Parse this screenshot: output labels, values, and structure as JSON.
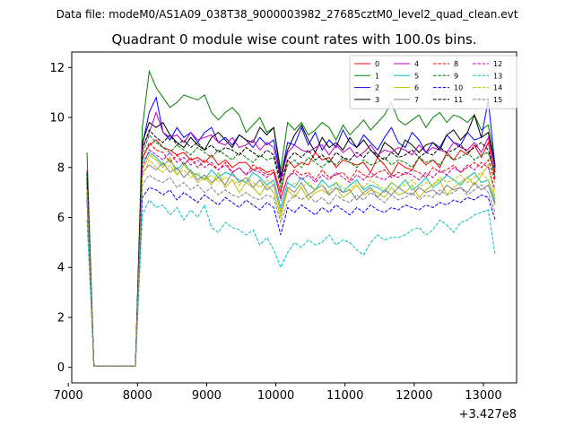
{
  "figure": {
    "suptitle": "Data file: modeM0/AS1A09_038T38_9000003982_27685cztM0_level2_quad_clean.evt"
  },
  "chart_data": {
    "type": "line",
    "title": "Quadrant 0 module wise count rates with 100.0s bins.",
    "xlabel": "",
    "ylabel": "",
    "x_offset_label": "+3.427e8",
    "xlim": [
      7050,
      13480
    ],
    "ylim": [
      -0.62,
      12.62
    ],
    "x_ticks": [
      7000,
      8000,
      9000,
      10000,
      11000,
      12000,
      13000
    ],
    "x_tick_labels": [
      "7000",
      "8000",
      "9000",
      "10000",
      "11000",
      "12000",
      "13000"
    ],
    "y_ticks": [
      0,
      2,
      4,
      6,
      8,
      10,
      12
    ],
    "y_tick_labels": [
      "0",
      "2",
      "4",
      "6",
      "8",
      "10",
      "12"
    ],
    "grid": false,
    "legend_position": "upper right",
    "legend_ncol": 4,
    "x": [
      7270,
      7370,
      7470,
      7570,
      7670,
      7770,
      7870,
      7970,
      8070,
      8170,
      8270,
      8370,
      8470,
      8570,
      8670,
      8770,
      8870,
      8970,
      9070,
      9170,
      9270,
      9370,
      9470,
      9570,
      9670,
      9770,
      9870,
      9970,
      10070,
      10170,
      10270,
      10370,
      10470,
      10570,
      10670,
      10770,
      10870,
      10970,
      11070,
      11170,
      11270,
      11370,
      11470,
      11570,
      11670,
      11770,
      11870,
      11970,
      12070,
      12170,
      12270,
      12370,
      12470,
      12570,
      12670,
      12770,
      12870,
      12970,
      13070,
      13170
    ],
    "series": [
      {
        "name": "0",
        "color": "#ff0000",
        "dash": "solid",
        "values": [
          7.7,
          0.05,
          0.05,
          0.05,
          0.05,
          0.05,
          0.05,
          0.05,
          8.4,
          8.9,
          9.1,
          8.8,
          8.7,
          8.5,
          8.6,
          8.3,
          8.4,
          8.2,
          8.5,
          8.1,
          8.3,
          8.0,
          8.2,
          8.2,
          7.9,
          8.0,
          7.8,
          7.9,
          7.0,
          8.3,
          8.0,
          8.2,
          8.1,
          8.6,
          8.3,
          8.4,
          8.0,
          8.3,
          8.2,
          8.1,
          8.2,
          7.8,
          8.4,
          8.1,
          7.7,
          8.2,
          8.0,
          7.9,
          8.4,
          8.1,
          8.3,
          8.0,
          8.6,
          8.3,
          8.7,
          8.5,
          8.9,
          8.4,
          9.0,
          7.6
        ]
      },
      {
        "name": "1",
        "color": "#008000",
        "dash": "solid",
        "values": [
          8.6,
          0.05,
          0.05,
          0.05,
          0.05,
          0.05,
          0.05,
          0.05,
          9.6,
          11.85,
          11.2,
          10.8,
          10.4,
          10.6,
          10.9,
          10.8,
          10.7,
          10.9,
          10.2,
          9.9,
          10.2,
          10.4,
          10.1,
          9.4,
          9.7,
          10.0,
          9.4,
          9.6,
          7.9,
          9.8,
          9.5,
          9.8,
          9.3,
          9.5,
          9.8,
          9.6,
          9.1,
          9.7,
          9.3,
          9.6,
          9.9,
          9.5,
          9.8,
          10.1,
          10.6,
          9.9,
          9.7,
          9.9,
          10.1,
          9.6,
          10.0,
          10.2,
          9.8,
          10.1,
          10.0,
          9.8,
          10.1,
          9.5,
          9.7,
          8.1
        ]
      },
      {
        "name": "2",
        "color": "#0000ff",
        "dash": "solid",
        "values": [
          7.5,
          0.05,
          0.05,
          0.05,
          0.05,
          0.05,
          0.05,
          0.05,
          8.9,
          10.2,
          10.8,
          9.4,
          9.1,
          9.6,
          9.2,
          9.4,
          9.0,
          9.4,
          9.6,
          9.0,
          9.2,
          8.9,
          9.3,
          9.1,
          8.8,
          9.2,
          8.9,
          9.1,
          7.6,
          9.0,
          8.9,
          9.6,
          8.9,
          9.4,
          8.7,
          9.1,
          8.8,
          9.5,
          9.0,
          8.8,
          9.3,
          9.0,
          8.7,
          9.2,
          9.6,
          9.0,
          8.8,
          9.4,
          9.1,
          8.6,
          9.0,
          8.8,
          9.3,
          9.0,
          8.9,
          9.4,
          9.1,
          9.2,
          10.7,
          8.0
        ]
      },
      {
        "name": "3",
        "color": "#000000",
        "dash": "solid",
        "values": [
          7.3,
          0.05,
          0.05,
          0.05,
          0.05,
          0.05,
          0.05,
          0.05,
          9.0,
          9.8,
          9.6,
          9.8,
          9.3,
          9.0,
          8.8,
          9.2,
          8.9,
          8.7,
          9.2,
          9.4,
          9.1,
          8.8,
          9.3,
          9.1,
          9.0,
          9.6,
          9.3,
          9.6,
          7.7,
          8.7,
          9.3,
          9.7,
          9.1,
          8.6,
          9.2,
          8.8,
          9.0,
          8.7,
          9.2,
          8.8,
          9.1,
          8.7,
          8.4,
          9.0,
          8.8,
          8.5,
          9.1,
          8.9,
          8.6,
          8.9,
          9.0,
          8.7,
          9.3,
          9.5,
          9.1,
          9.4,
          10.1,
          9.2,
          9.4,
          8.0
        ]
      },
      {
        "name": "4",
        "color": "#bf00bf",
        "dash": "solid",
        "values": [
          7.9,
          0.05,
          0.05,
          0.05,
          0.05,
          0.05,
          0.05,
          0.05,
          8.8,
          9.4,
          10.2,
          9.4,
          9.2,
          9.3,
          9.0,
          9.4,
          9.1,
          9.2,
          9.3,
          9.0,
          8.9,
          9.2,
          8.8,
          8.9,
          9.1,
          8.7,
          9.0,
          8.8,
          7.5,
          8.6,
          8.9,
          8.7,
          8.6,
          8.8,
          8.9,
          8.5,
          8.9,
          8.6,
          8.8,
          8.4,
          8.6,
          8.9,
          8.5,
          8.7,
          8.6,
          8.8,
          8.7,
          8.5,
          8.9,
          8.6,
          8.8,
          8.7,
          8.6,
          9.0,
          8.8,
          8.7,
          9.0,
          8.6,
          9.2,
          7.9
        ]
      },
      {
        "name": "5",
        "color": "#00bfbf",
        "dash": "solid",
        "values": [
          7.4,
          0.05,
          0.05,
          0.05,
          0.05,
          0.05,
          0.05,
          0.05,
          8.2,
          8.6,
          8.4,
          8.1,
          8.3,
          7.9,
          8.2,
          7.8,
          7.7,
          7.5,
          7.9,
          7.6,
          7.8,
          7.7,
          7.5,
          7.4,
          7.8,
          7.6,
          7.3,
          7.5,
          6.4,
          7.4,
          7.2,
          7.6,
          7.3,
          7.1,
          7.5,
          7.2,
          7.4,
          7.0,
          7.3,
          7.5,
          7.1,
          7.3,
          7.2,
          7.0,
          7.4,
          7.2,
          7.5,
          7.1,
          7.3,
          7.6,
          7.2,
          7.4,
          7.7,
          7.5,
          7.3,
          7.6,
          7.8,
          7.4,
          7.5,
          6.6
        ]
      },
      {
        "name": "6",
        "color": "#bfbf00",
        "dash": "solid",
        "values": [
          7.0,
          0.05,
          0.05,
          0.05,
          0.05,
          0.05,
          0.05,
          0.05,
          7.9,
          8.5,
          8.3,
          8.0,
          8.4,
          7.7,
          8.1,
          7.8,
          7.4,
          7.6,
          7.3,
          7.8,
          7.2,
          7.5,
          7.0,
          7.4,
          7.2,
          6.9,
          7.3,
          7.0,
          6.0,
          7.1,
          6.8,
          7.2,
          6.7,
          7.0,
          7.1,
          6.9,
          7.2,
          6.8,
          7.0,
          7.3,
          6.9,
          7.1,
          7.0,
          6.8,
          7.2,
          6.9,
          7.0,
          7.3,
          6.8,
          7.1,
          7.3,
          7.5,
          6.9,
          7.2,
          7.4,
          7.6,
          7.3,
          7.7,
          8.1,
          6.8
        ]
      },
      {
        "name": "7",
        "color": "#808080",
        "dash": "solid",
        "values": [
          6.9,
          0.05,
          0.05,
          0.05,
          0.05,
          0.05,
          0.05,
          0.05,
          7.8,
          8.1,
          7.9,
          8.2,
          7.8,
          8.0,
          7.6,
          7.9,
          7.5,
          7.7,
          7.4,
          7.6,
          7.3,
          7.8,
          7.4,
          7.6,
          7.2,
          7.5,
          7.1,
          7.3,
          6.2,
          7.2,
          7.0,
          7.4,
          6.9,
          7.1,
          7.3,
          6.9,
          7.2,
          7.0,
          7.1,
          6.7,
          7.0,
          7.2,
          6.8,
          7.1,
          6.9,
          7.2,
          7.0,
          6.9,
          7.2,
          7.0,
          7.1,
          6.9,
          7.3,
          7.1,
          7.2,
          7.0,
          7.4,
          7.1,
          7.3,
          6.5
        ]
      },
      {
        "name": "8",
        "color": "#ff0000",
        "dash": "dashed",
        "values": [
          7.6,
          0.05,
          0.05,
          0.05,
          0.05,
          0.05,
          0.05,
          0.05,
          8.3,
          9.0,
          8.7,
          8.6,
          8.2,
          8.5,
          8.1,
          8.4,
          8.0,
          8.3,
          8.1,
          7.9,
          8.2,
          7.8,
          8.0,
          7.7,
          8.1,
          7.9,
          7.7,
          7.8,
          6.8,
          7.6,
          7.9,
          7.7,
          7.8,
          7.5,
          7.9,
          7.6,
          7.7,
          7.8,
          7.5,
          7.9,
          7.7,
          7.6,
          7.8,
          7.9,
          7.6,
          7.8,
          7.7,
          7.9,
          7.8,
          7.6,
          8.0,
          7.8,
          7.9,
          8.1,
          7.8,
          8.0,
          8.2,
          8.0,
          8.3,
          7.4
        ]
      },
      {
        "name": "9",
        "color": "#008000",
        "dash": "dashed",
        "values": [
          7.7,
          0.05,
          0.05,
          0.05,
          0.05,
          0.05,
          0.05,
          0.05,
          8.5,
          9.3,
          9.0,
          8.8,
          8.6,
          8.9,
          8.7,
          8.5,
          8.8,
          8.6,
          8.4,
          8.7,
          8.5,
          8.3,
          8.6,
          8.4,
          8.2,
          8.5,
          8.3,
          8.4,
          7.2,
          8.1,
          8.3,
          8.0,
          8.4,
          8.2,
          8.0,
          8.3,
          8.1,
          8.4,
          8.2,
          8.0,
          8.3,
          8.1,
          8.2,
          8.4,
          8.1,
          8.3,
          8.2,
          8.0,
          8.4,
          8.2,
          8.3,
          8.1,
          8.5,
          8.3,
          8.4,
          8.6,
          8.3,
          8.5,
          8.6,
          7.5
        ]
      },
      {
        "name": "10",
        "color": "#0000ff",
        "dash": "dashed",
        "values": [
          6.7,
          0.05,
          0.05,
          0.05,
          0.05,
          0.05,
          0.05,
          0.05,
          6.8,
          7.2,
          7.1,
          6.9,
          7.1,
          6.7,
          7.0,
          6.8,
          6.6,
          6.9,
          6.7,
          6.5,
          6.8,
          6.6,
          6.4,
          6.7,
          6.5,
          6.3,
          6.6,
          6.4,
          5.3,
          6.4,
          6.2,
          6.5,
          6.3,
          6.1,
          6.4,
          6.2,
          6.5,
          6.3,
          6.1,
          6.4,
          6.2,
          6.5,
          6.3,
          6.2,
          6.4,
          6.3,
          6.5,
          6.4,
          6.3,
          6.5,
          6.4,
          6.6,
          6.5,
          6.7,
          6.6,
          6.8,
          6.7,
          6.9,
          6.8,
          5.9
        ]
      },
      {
        "name": "11",
        "color": "#000000",
        "dash": "dashed",
        "values": [
          7.8,
          0.05,
          0.05,
          0.05,
          0.05,
          0.05,
          0.05,
          0.05,
          8.7,
          9.5,
          9.2,
          9.0,
          9.3,
          8.9,
          9.1,
          8.8,
          9.0,
          8.7,
          8.9,
          8.6,
          8.8,
          8.7,
          8.5,
          8.8,
          8.6,
          8.4,
          8.7,
          8.5,
          7.4,
          8.3,
          8.6,
          8.4,
          8.7,
          8.3,
          8.5,
          8.2,
          8.6,
          8.4,
          8.3,
          8.6,
          8.4,
          8.7,
          8.5,
          8.3,
          8.6,
          8.4,
          8.5,
          8.7,
          8.4,
          8.6,
          8.5,
          8.8,
          8.6,
          8.7,
          8.9,
          8.6,
          8.8,
          9.0,
          8.7,
          7.8
        ]
      },
      {
        "name": "12",
        "color": "#bf00bf",
        "dash": "dashed",
        "values": [
          7.2,
          0.05,
          0.05,
          0.05,
          0.05,
          0.05,
          0.05,
          0.05,
          8.0,
          8.7,
          8.5,
          8.3,
          8.6,
          8.2,
          8.4,
          8.1,
          8.3,
          8.0,
          8.2,
          7.9,
          8.1,
          7.8,
          8.0,
          7.7,
          7.9,
          7.8,
          7.6,
          7.8,
          6.7,
          7.6,
          7.8,
          7.5,
          7.7,
          7.4,
          7.7,
          7.5,
          7.8,
          7.6,
          7.4,
          7.7,
          7.5,
          7.8,
          7.6,
          7.5,
          7.7,
          7.6,
          7.8,
          7.7,
          7.5,
          7.8,
          7.6,
          7.9,
          7.7,
          8.0,
          7.8,
          8.1,
          7.9,
          8.2,
          8.0,
          7.1
        ]
      },
      {
        "name": "13",
        "color": "#00bfbf",
        "dash": "dashed",
        "values": [
          5.9,
          0.05,
          0.05,
          0.05,
          0.05,
          0.05,
          0.05,
          0.05,
          6.1,
          6.7,
          6.4,
          6.5,
          6.1,
          6.4,
          5.9,
          6.3,
          6.0,
          6.5,
          5.6,
          5.4,
          5.8,
          5.6,
          5.5,
          5.3,
          5.5,
          4.9,
          5.2,
          4.7,
          4.0,
          4.6,
          5.0,
          4.8,
          5.1,
          4.9,
          5.0,
          5.3,
          4.9,
          5.1,
          5.0,
          4.7,
          4.5,
          5.0,
          5.3,
          5.1,
          5.2,
          5.2,
          5.3,
          5.5,
          5.6,
          5.3,
          5.5,
          5.9,
          5.7,
          5.4,
          5.8,
          5.9,
          6.1,
          6.2,
          6.3,
          4.5
        ]
      },
      {
        "name": "14",
        "color": "#bfbf00",
        "dash": "dashed",
        "values": [
          7.1,
          0.05,
          0.05,
          0.05,
          0.05,
          0.05,
          0.05,
          0.05,
          7.6,
          8.3,
          8.0,
          7.8,
          8.1,
          7.7,
          7.9,
          7.6,
          7.8,
          7.5,
          7.7,
          7.4,
          7.6,
          7.5,
          7.3,
          7.6,
          7.4,
          7.2,
          7.5,
          7.3,
          6.2,
          7.1,
          7.4,
          7.2,
          7.4,
          7.1,
          7.3,
          7.0,
          7.4,
          7.2,
          7.1,
          7.4,
          7.2,
          7.5,
          7.3,
          7.1,
          7.4,
          7.2,
          7.3,
          7.5,
          7.2,
          7.4,
          7.3,
          7.6,
          7.4,
          7.5,
          7.7,
          7.4,
          7.6,
          7.8,
          7.5,
          6.7
        ]
      },
      {
        "name": "15",
        "color": "#808080",
        "dash": "dashed",
        "values": [
          6.8,
          0.05,
          0.05,
          0.05,
          0.05,
          0.05,
          0.05,
          0.05,
          7.3,
          7.7,
          7.5,
          7.4,
          7.6,
          7.2,
          7.4,
          7.1,
          7.3,
          7.0,
          7.2,
          6.9,
          7.1,
          6.9,
          6.8,
          7.0,
          6.8,
          6.7,
          6.9,
          6.8,
          5.8,
          6.6,
          6.9,
          6.7,
          6.9,
          6.6,
          6.8,
          6.5,
          6.9,
          6.7,
          6.6,
          6.9,
          6.7,
          7.0,
          6.8,
          6.6,
          6.9,
          6.7,
          6.8,
          7.0,
          6.7,
          6.9,
          6.8,
          7.1,
          6.9,
          7.0,
          7.2,
          6.9,
          7.1,
          7.3,
          7.0,
          6.2
        ]
      }
    ]
  }
}
